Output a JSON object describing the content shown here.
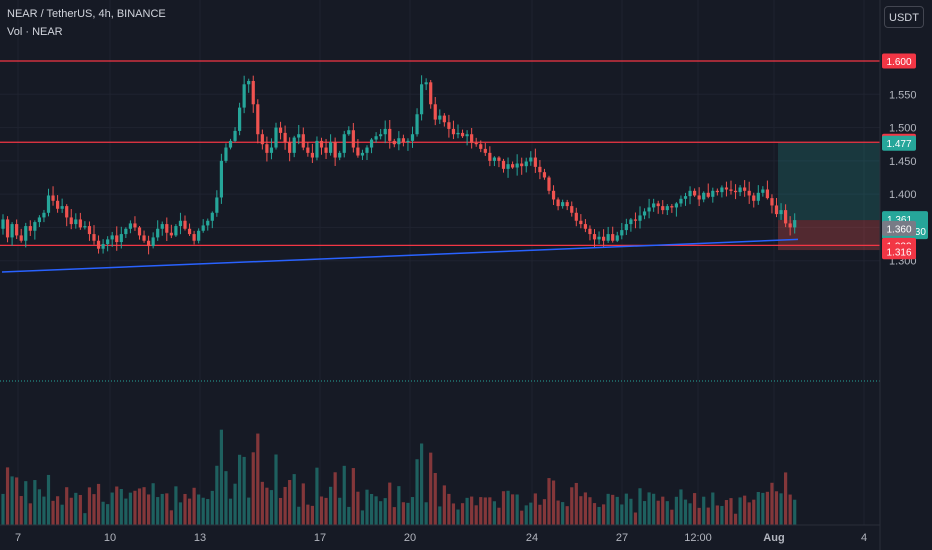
{
  "header": {
    "title": "NEAR / TetherUS, 4h, BINANCE",
    "volume_label": "Vol · NEAR"
  },
  "currency_button": "USDT",
  "colors": {
    "background": "#161a25",
    "up": "#26a69a",
    "down": "#ef5350",
    "level_line": "#f23645",
    "trendline": "#2962ff",
    "grid": "#1f2330"
  },
  "price_badges": {
    "level_1600": "1.600",
    "level_1478": "1.478",
    "target": "1.477",
    "last_price": "1.361",
    "countdown": "01:53:30",
    "cursor_price": "1.360",
    "level_1323": "1.323",
    "stop": "1.316"
  },
  "chart_data": {
    "type": "candlestick",
    "symbol": "NEAR / TetherUS",
    "interval": "4h",
    "exchange": "BINANCE",
    "y_ticks": [
      "1.300",
      "1.350",
      "1.400",
      "1.450",
      "1.500",
      "1.550"
    ],
    "y_range": [
      1.26,
      1.61
    ],
    "x_ticks": [
      "7",
      "10",
      "13",
      "17",
      "20",
      "24",
      "27",
      "12:00",
      "Aug",
      "4"
    ],
    "horizontal_levels": [
      1.6,
      1.478,
      1.323
    ],
    "trendline": {
      "from_price": 1.283,
      "to_price": 1.332
    },
    "position": {
      "entry": 1.361,
      "target": 1.477,
      "stop": 1.316
    },
    "closes": [
      1.362,
      1.335,
      1.355,
      1.338,
      1.33,
      1.352,
      1.345,
      1.358,
      1.365,
      1.372,
      1.398,
      1.39,
      1.378,
      1.382,
      1.365,
      1.355,
      1.362,
      1.35,
      1.352,
      1.34,
      1.33,
      1.318,
      1.325,
      1.332,
      1.338,
      1.328,
      1.34,
      1.348,
      1.356,
      1.35,
      1.338,
      1.33,
      1.322,
      1.335,
      1.348,
      1.355,
      1.342,
      1.338,
      1.352,
      1.36,
      1.348,
      1.34,
      1.33,
      1.345,
      1.353,
      1.36,
      1.372,
      1.395,
      1.45,
      1.47,
      1.48,
      1.495,
      1.53,
      1.565,
      1.57,
      1.535,
      1.49,
      1.475,
      1.462,
      1.47,
      1.5,
      1.492,
      1.478,
      1.462,
      1.485,
      1.49,
      1.47,
      1.462,
      1.455,
      1.48,
      1.47,
      1.462,
      1.478,
      1.455,
      1.462,
      1.49,
      1.496,
      1.47,
      1.458,
      1.462,
      1.47,
      1.482,
      1.487,
      1.49,
      1.498,
      1.48,
      1.475,
      1.484,
      1.478,
      1.48,
      1.49,
      1.52,
      1.565,
      1.568,
      1.535,
      1.512,
      1.518,
      1.508,
      1.498,
      1.49,
      1.492,
      1.487,
      1.49,
      1.477,
      1.475,
      1.468,
      1.462,
      1.45,
      1.455,
      1.45,
      1.438,
      1.445,
      1.44,
      1.446,
      1.442,
      1.449,
      1.455,
      1.441,
      1.433,
      1.425,
      1.405,
      1.392,
      1.382,
      1.388,
      1.382,
      1.372,
      1.36,
      1.355,
      1.348,
      1.34,
      1.332,
      1.336,
      1.33,
      1.34,
      1.33,
      1.338,
      1.346,
      1.355,
      1.362,
      1.36,
      1.368,
      1.374,
      1.38,
      1.386,
      1.382,
      1.376,
      1.382,
      1.38,
      1.386,
      1.393,
      1.397,
      1.405,
      1.398,
      1.392,
      1.402,
      1.396,
      1.405,
      1.403,
      1.41,
      1.407,
      1.405,
      1.403,
      1.41,
      1.405,
      1.398,
      1.39,
      1.402,
      1.407,
      1.394,
      1.383,
      1.37,
      1.376,
      1.356,
      1.35,
      1.361
    ]
  }
}
